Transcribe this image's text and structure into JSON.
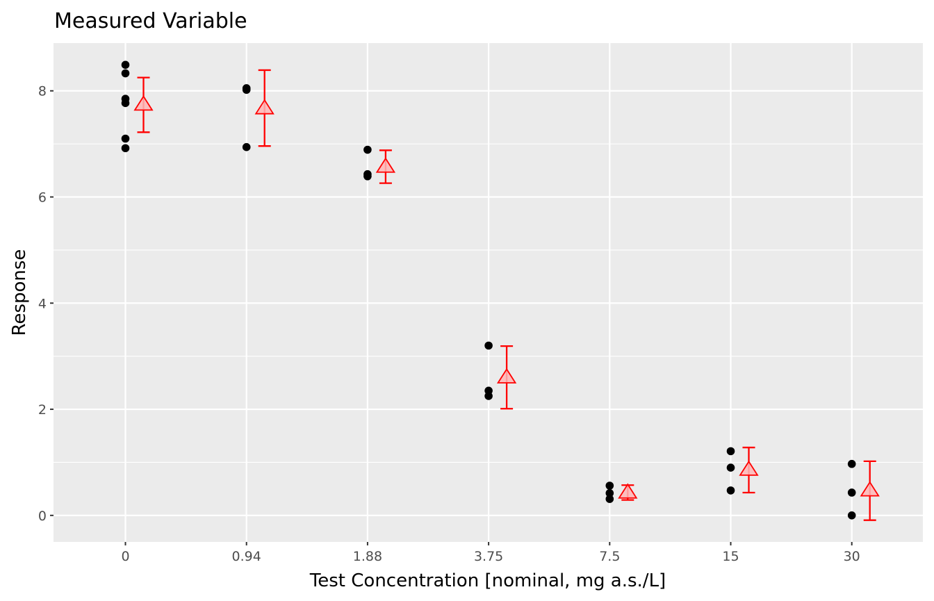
{
  "chart_data": {
    "type": "scatter",
    "title": "Measured Variable",
    "xlabel": "Test Concentration [nominal, mg a.s./L]",
    "ylabel": "Response",
    "categories": [
      "0",
      "0.94",
      "1.88",
      "3.75",
      "7.5",
      "15",
      "30"
    ],
    "y_ticks": [
      0,
      2,
      4,
      6,
      8
    ],
    "ylim": [
      -0.5,
      8.9
    ],
    "grid": true,
    "legend": "none",
    "colors": {
      "panel_bg": "#ebebeb",
      "grid": "#ffffff",
      "points": "#000000",
      "summary": "#ff0000",
      "summary_fill": "#ffb6b6"
    },
    "series": [
      {
        "marker": "circle",
        "points": [
          {
            "x": "0",
            "y": 8.49
          },
          {
            "x": "0",
            "y": 8.33
          },
          {
            "x": "0",
            "y": 7.85
          },
          {
            "x": "0",
            "y": 7.77
          },
          {
            "x": "0",
            "y": 7.1
          },
          {
            "x": "0",
            "y": 6.92
          },
          {
            "x": "0.94",
            "y": 8.05
          },
          {
            "x": "0.94",
            "y": 8.02
          },
          {
            "x": "0.94",
            "y": 6.94
          },
          {
            "x": "1.88",
            "y": 6.89
          },
          {
            "x": "1.88",
            "y": 6.43
          },
          {
            "x": "1.88",
            "y": 6.39
          },
          {
            "x": "3.75",
            "y": 3.2
          },
          {
            "x": "3.75",
            "y": 2.35
          },
          {
            "x": "3.75",
            "y": 2.25
          },
          {
            "x": "7.5",
            "y": 0.56
          },
          {
            "x": "7.5",
            "y": 0.42
          },
          {
            "x": "7.5",
            "y": 0.31
          },
          {
            "x": "15",
            "y": 1.21
          },
          {
            "x": "15",
            "y": 0.9
          },
          {
            "x": "15",
            "y": 0.47
          },
          {
            "x": "30",
            "y": 0.97
          },
          {
            "x": "30",
            "y": 0.43
          },
          {
            "x": "30",
            "y": 0.0
          }
        ]
      },
      {
        "marker": "triangle",
        "points": [
          {
            "x": "0",
            "mean": 7.74,
            "lower": 7.22,
            "upper": 8.25
          },
          {
            "x": "0.94",
            "mean": 7.67,
            "lower": 6.96,
            "upper": 8.39
          },
          {
            "x": "1.88",
            "mean": 6.57,
            "lower": 6.26,
            "upper": 6.88
          },
          {
            "x": "3.75",
            "mean": 2.6,
            "lower": 2.01,
            "upper": 3.19
          },
          {
            "x": "7.5",
            "mean": 0.43,
            "lower": 0.29,
            "upper": 0.57
          },
          {
            "x": "15",
            "mean": 0.86,
            "lower": 0.43,
            "upper": 1.28
          },
          {
            "x": "30",
            "mean": 0.47,
            "lower": -0.09,
            "upper": 1.02
          }
        ]
      }
    ]
  }
}
